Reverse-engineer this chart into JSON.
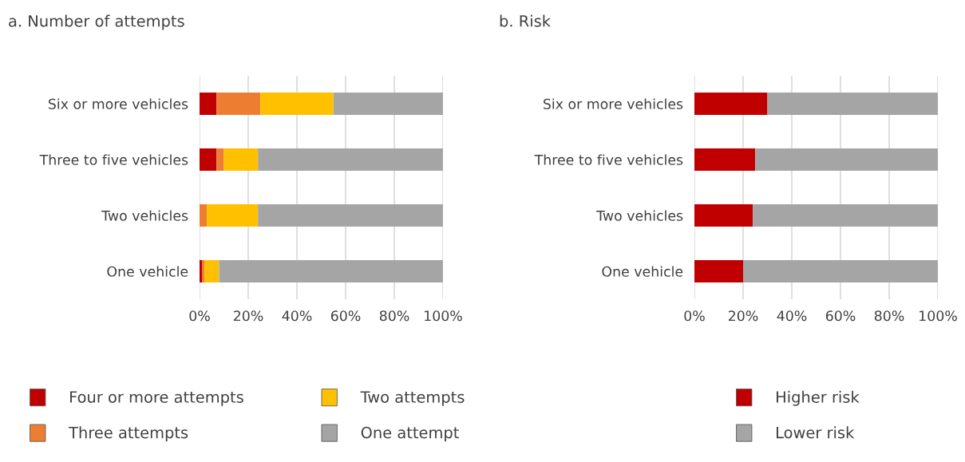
{
  "chart_data": [
    {
      "type": "bar",
      "title": "a. Number of attempts",
      "orientation": "horizontal",
      "stacked": true,
      "categories": [
        "Six or more vehicles",
        "Three to five vehicles",
        "Two vehicles",
        "One vehicle"
      ],
      "series": [
        {
          "name": "Four or more attempts",
          "color": "#c00000",
          "values": [
            7,
            7,
            0,
            1
          ]
        },
        {
          "name": "Three attempts",
          "color": "#ed7d31",
          "values": [
            18,
            3,
            3,
            1
          ]
        },
        {
          "name": "Two attempts",
          "color": "#ffc000",
          "values": [
            30,
            14,
            21,
            6
          ]
        },
        {
          "name": "One attempt",
          "color": "#a5a5a5",
          "values": [
            45,
            76,
            76,
            92
          ]
        }
      ],
      "xlim": [
        0,
        100
      ],
      "xticks": [
        {
          "value": 0,
          "label": "0%"
        },
        {
          "value": 20,
          "label": "20%"
        },
        {
          "value": 40,
          "label": "40%"
        },
        {
          "value": 60,
          "label": "60%"
        },
        {
          "value": 80,
          "label": "80%"
        },
        {
          "value": 100,
          "label": "100%"
        }
      ],
      "grid": "x",
      "legend": "bottom"
    },
    {
      "type": "bar",
      "title": "b. Risk",
      "orientation": "horizontal",
      "stacked": true,
      "categories": [
        "Six or more vehicles",
        "Three to five vehicles",
        "Two vehicles",
        "One vehicle"
      ],
      "series": [
        {
          "name": "Higher risk",
          "color": "#c00000",
          "values": [
            30,
            25,
            24,
            20
          ]
        },
        {
          "name": "Lower risk",
          "color": "#a5a5a5",
          "values": [
            70,
            75,
            76,
            80
          ]
        }
      ],
      "xlim": [
        0,
        100
      ],
      "xticks": [
        {
          "value": 0,
          "label": "0%"
        },
        {
          "value": 20,
          "label": "20%"
        },
        {
          "value": 40,
          "label": "40%"
        },
        {
          "value": 60,
          "label": "60%"
        },
        {
          "value": 80,
          "label": "80%"
        },
        {
          "value": 100,
          "label": "100%"
        }
      ],
      "grid": "x",
      "legend": "bottom"
    }
  ]
}
